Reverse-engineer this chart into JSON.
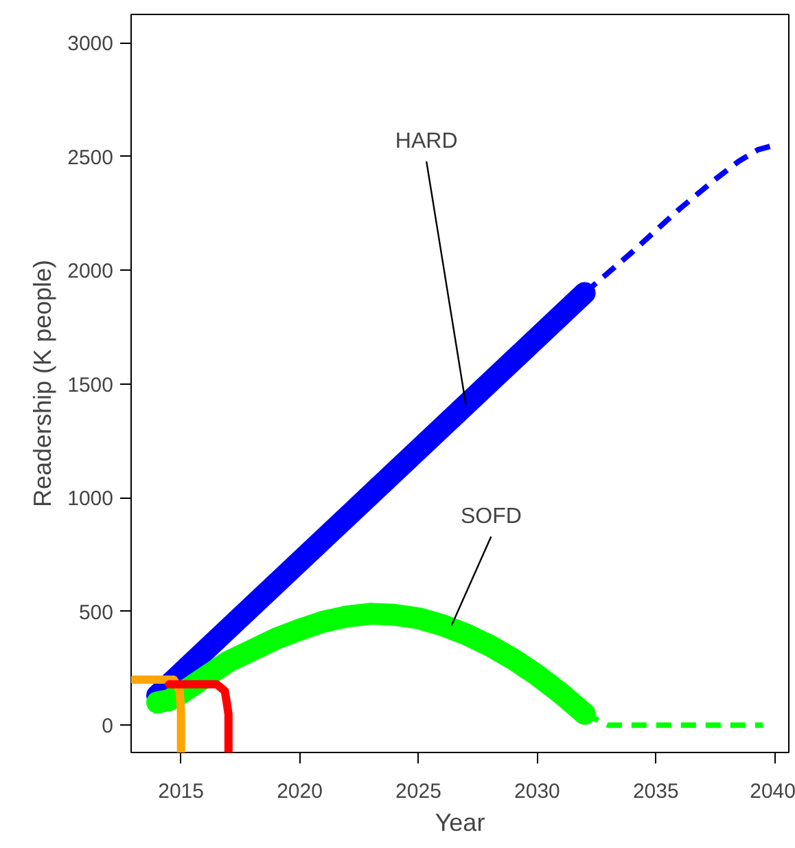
{
  "chart_data": {
    "type": "line",
    "xlabel": "Year",
    "ylabel": "Readership (K people)",
    "xlim": [
      2012.9,
      2040.6
    ],
    "ylim": [
      -120,
      3125
    ],
    "xticks": [
      2015,
      2020,
      2025,
      2030,
      2035,
      2040
    ],
    "yticks": [
      0,
      500,
      1000,
      1500,
      2000,
      2500,
      3000
    ],
    "grid": false,
    "series": [
      {
        "color": "#0000ff",
        "line_style": "solid",
        "x": [
          2014,
          2032
        ],
        "values": [
          130,
          1900
        ]
      },
      {
        "color": "#0000ff",
        "line_style": "dashed",
        "x": [
          2032,
          2034,
          2036,
          2037.5,
          2038.5,
          2039.3,
          2040
        ],
        "values": [
          1900,
          2080,
          2270,
          2400,
          2480,
          2530,
          2550
        ]
      },
      {
        "color": "#00ff00",
        "line_style": "solid",
        "x": [
          2014,
          2014.5,
          2015,
          2016,
          2017,
          2018,
          2019,
          2020,
          2021,
          2022,
          2023,
          2024,
          2025,
          2026,
          2027,
          2028,
          2029,
          2030,
          2031,
          2032
        ],
        "values": [
          100,
          110,
          140,
          210,
          280,
          330,
          380,
          420,
          455,
          478,
          490,
          485,
          470,
          440,
          400,
          350,
          290,
          220,
          140,
          50
        ]
      },
      {
        "color": "#00ff00",
        "line_style": "dashed",
        "x": [
          2032,
          2033,
          2039.5
        ],
        "values": [
          50,
          0,
          0
        ]
      },
      {
        "color": "#ffa500",
        "line_style": "solid",
        "x": [
          2013,
          2014.7,
          2014.95,
          2015,
          2015
        ],
        "values": [
          200,
          200,
          150,
          50,
          -120
        ]
      },
      {
        "color": "#ff0000",
        "line_style": "solid",
        "x": [
          2014.5,
          2016.5,
          2016.85,
          2017,
          2017
        ],
        "values": [
          180,
          180,
          150,
          50,
          -120
        ]
      }
    ],
    "annotations": [
      {
        "text": "HARD",
        "x": 2027,
        "y": 1408
      },
      {
        "text": "SOFD",
        "x": 2026.4,
        "y": 440
      }
    ]
  }
}
